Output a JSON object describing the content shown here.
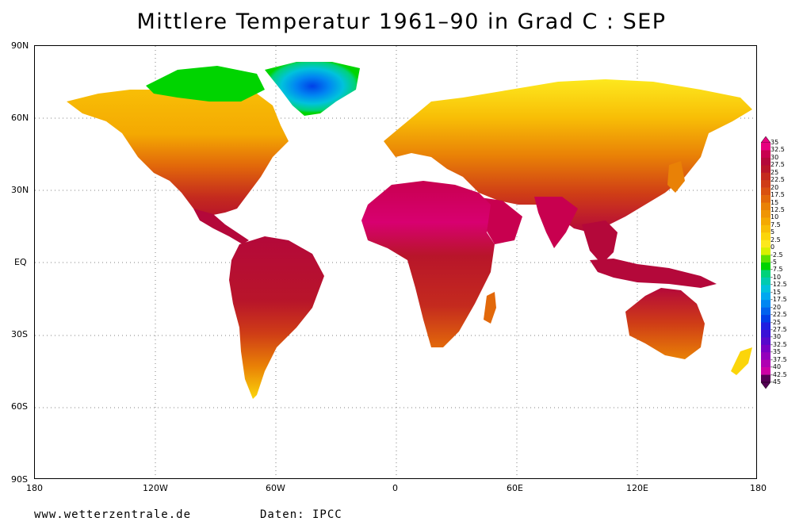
{
  "title": "Mittlere Temperatur 1961–90 in Grad C : SEP",
  "map": {
    "lat_labels": [
      "90N",
      "60N",
      "30N",
      "EQ",
      "30S",
      "60S",
      "90S"
    ],
    "lon_labels": [
      "180",
      "120W",
      "60W",
      "0",
      "60E",
      "120E",
      "180"
    ]
  },
  "legend": {
    "labels": [
      "35",
      "32.5",
      "30",
      "27.5",
      "25",
      "22.5",
      "20",
      "17.5",
      "15",
      "12.5",
      "10",
      "7.5",
      "5",
      "2.5",
      "0",
      "-2.5",
      "-5",
      "-7.5",
      "-10",
      "-12.5",
      "-15",
      "-17.5",
      "-20",
      "-22.5",
      "-25",
      "-27.5",
      "-30",
      "-32.5",
      "-35",
      "-37.5",
      "-40",
      "-42.5",
      "-45"
    ],
    "colors": [
      "#e6007e",
      "#c8004f",
      "#b4083a",
      "#b8152a",
      "#c42a1e",
      "#cf3d16",
      "#d95110",
      "#e2680a",
      "#e98106",
      "#ef9504",
      "#f4a902",
      "#f8be06",
      "#fbd50a",
      "#fde81e",
      "#d8f000",
      "#5ee000",
      "#00d400",
      "#00d27a",
      "#00cbb0",
      "#00c2dc",
      "#00a8f0",
      "#0086f2",
      "#0062ee",
      "#0040e8",
      "#2020e0",
      "#3a10d6",
      "#5808cc",
      "#7800c4",
      "#9400bc",
      "#b000b2",
      "#cc00a4",
      "#540054"
    ]
  },
  "footer": {
    "website": "www.wetterzentrale.de",
    "source": "Daten: IPCC"
  }
}
